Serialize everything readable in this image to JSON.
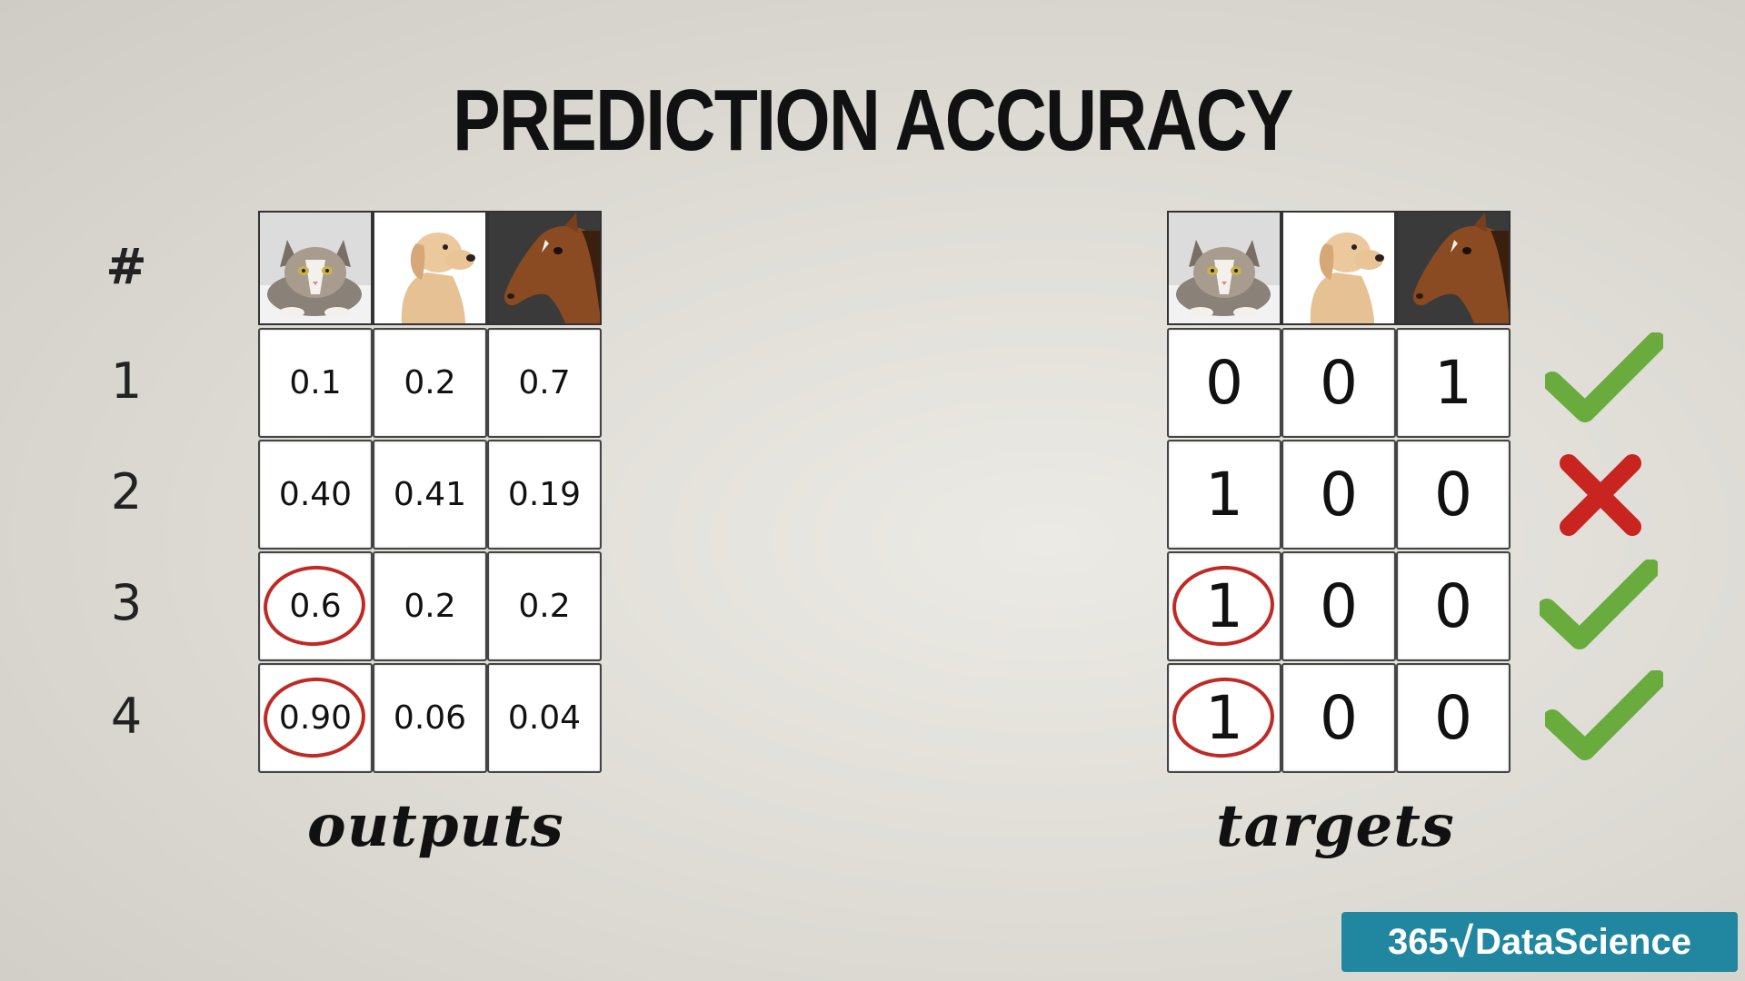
{
  "title": "PREDICTION ACCURACY",
  "header_symbol": "#",
  "rows": [
    "1",
    "2",
    "3",
    "4"
  ],
  "columns_icons": [
    "cat-photo",
    "dog-photo",
    "horse-photo"
  ],
  "outputs": {
    "caption": "outputs",
    "values": [
      [
        "0.1",
        "0.2",
        "0.7"
      ],
      [
        "0.40",
        "0.41",
        "0.19"
      ],
      [
        "0.6",
        "0.2",
        "0.2"
      ],
      [
        "0.90",
        "0.06",
        "0.04"
      ]
    ]
  },
  "targets": {
    "caption": "targets",
    "values": [
      [
        "0",
        "0",
        "1"
      ],
      [
        "1",
        "0",
        "0"
      ],
      [
        "1",
        "0",
        "0"
      ],
      [
        "1",
        "0",
        "0"
      ]
    ]
  },
  "results": [
    "check-icon",
    "cross-icon",
    "check-icon",
    "check-icon"
  ],
  "circled_rows": [
    3,
    4
  ],
  "colors": {
    "check": "#6aab3e",
    "cross": "#c82420",
    "circle": "#c02a24",
    "logo_bg": "#2187a0"
  },
  "logo": {
    "prefix": "365",
    "sqrt": "√",
    "name": "DataScience"
  }
}
